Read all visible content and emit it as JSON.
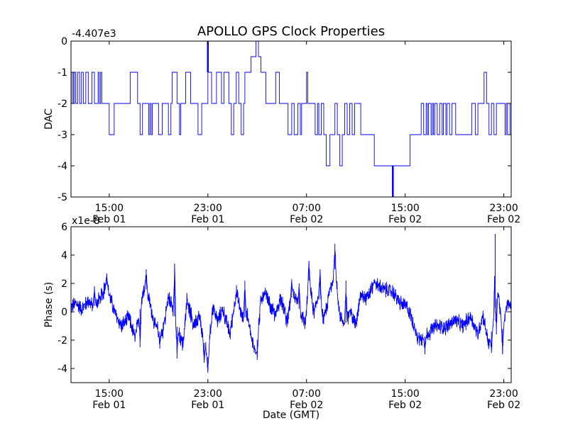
{
  "chart_data": {
    "title": "APOLLO GPS Clock Properties",
    "type": "line",
    "x_tick_labels": [
      {
        "time": "15:00",
        "date": "Feb 01",
        "hour": 15
      },
      {
        "time": "23:00",
        "date": "Feb 01",
        "hour": 23
      },
      {
        "time": "07:00",
        "date": "Feb 02",
        "hour": 31
      },
      {
        "time": "15:00",
        "date": "Feb 02",
        "hour": 39
      },
      {
        "time": "23:00",
        "date": "Feb 02",
        "hour": 47
      }
    ],
    "xlim_hours_from_feb01_00": [
      11.9,
      47.6
    ],
    "xlabel": "Date (GMT)",
    "colors": {
      "series": "#0000ff",
      "axes": "#000000",
      "background": "#ffffff"
    },
    "panels": [
      {
        "id": "dac",
        "ylabel": "DAC",
        "offset_text": "-4.407e3",
        "ylim": [
          -5,
          0
        ],
        "yticks": [
          -5,
          -4,
          -3,
          -2,
          -1,
          0
        ],
        "ytick_labels": [
          "-5",
          "-4",
          "-3",
          "-2",
          "-1",
          "0"
        ],
        "series_name": "DAC",
        "step_points": [
          [
            11.9,
            -2
          ],
          [
            12.0,
            -1
          ],
          [
            12.1,
            -2
          ],
          [
            12.2,
            -1
          ],
          [
            12.3,
            -2
          ],
          [
            12.45,
            -1
          ],
          [
            12.6,
            -2
          ],
          [
            12.75,
            -1
          ],
          [
            12.9,
            -2
          ],
          [
            13.1,
            -1
          ],
          [
            13.3,
            -2
          ],
          [
            13.6,
            -1
          ],
          [
            13.8,
            -2
          ],
          [
            14.1,
            -1
          ],
          [
            14.2,
            -2
          ],
          [
            14.3,
            -1
          ],
          [
            14.4,
            -2
          ],
          [
            14.5,
            -2
          ],
          [
            14.8,
            -2
          ],
          [
            15.0,
            -3
          ],
          [
            15.4,
            -2
          ],
          [
            16.0,
            -2
          ],
          [
            16.5,
            -2
          ],
          [
            16.7,
            -1
          ],
          [
            17.3,
            -2
          ],
          [
            17.5,
            -3
          ],
          [
            17.7,
            -2
          ],
          [
            18.0,
            -2
          ],
          [
            18.2,
            -3
          ],
          [
            18.3,
            -2
          ],
          [
            18.4,
            -3
          ],
          [
            18.5,
            -2
          ],
          [
            18.8,
            -2
          ],
          [
            19.0,
            -3
          ],
          [
            19.3,
            -2
          ],
          [
            19.6,
            -2
          ],
          [
            19.8,
            -3
          ],
          [
            20.0,
            -2
          ],
          [
            20.1,
            -1
          ],
          [
            20.5,
            -2
          ],
          [
            20.7,
            -3
          ],
          [
            20.8,
            -2
          ],
          [
            21.0,
            -2
          ],
          [
            21.2,
            -1
          ],
          [
            21.6,
            -2
          ],
          [
            22.0,
            -2
          ],
          [
            22.2,
            -3
          ],
          [
            22.5,
            -2
          ],
          [
            23.0,
            -1
          ],
          [
            23.3,
            -2
          ],
          [
            23.5,
            -2
          ],
          [
            23.7,
            -1
          ],
          [
            24.1,
            -2
          ],
          [
            24.3,
            -1
          ],
          [
            24.7,
            -2
          ],
          [
            24.9,
            -3
          ],
          [
            25.1,
            -2
          ],
          [
            25.3,
            -1
          ],
          [
            25.5,
            -2
          ],
          [
            25.7,
            -3
          ],
          [
            25.9,
            -2
          ],
          [
            26.0,
            -1
          ],
          [
            26.5,
            -0.5
          ],
          [
            26.9,
            0
          ],
          [
            27.1,
            -0.5
          ],
          [
            27.3,
            -1
          ],
          [
            27.7,
            -2
          ],
          [
            28.2,
            -2
          ],
          [
            28.5,
            -1
          ],
          [
            28.8,
            -2
          ],
          [
            29.3,
            -2
          ],
          [
            29.5,
            -3
          ],
          [
            29.8,
            -2
          ],
          [
            30.0,
            -3
          ],
          [
            30.3,
            -2
          ],
          [
            30.5,
            -3
          ],
          [
            30.6,
            -2
          ],
          [
            30.8,
            -2
          ],
          [
            31.0,
            -1
          ],
          [
            31.1,
            -2
          ],
          [
            31.5,
            -2
          ],
          [
            31.7,
            -3
          ],
          [
            31.9,
            -2
          ],
          [
            32.0,
            -3
          ],
          [
            32.2,
            -2
          ],
          [
            32.4,
            -3
          ],
          [
            32.6,
            -4
          ],
          [
            32.9,
            -3
          ],
          [
            33.1,
            -3
          ],
          [
            33.3,
            -2
          ],
          [
            33.5,
            -3
          ],
          [
            33.7,
            -4
          ],
          [
            33.9,
            -3
          ],
          [
            34.1,
            -2
          ],
          [
            34.3,
            -3
          ],
          [
            34.5,
            -2
          ],
          [
            34.7,
            -3
          ],
          [
            34.9,
            -2
          ],
          [
            35.2,
            -2
          ],
          [
            35.4,
            -3
          ],
          [
            36.3,
            -3
          ],
          [
            36.5,
            -4
          ],
          [
            39.2,
            -4
          ],
          [
            39.4,
            -3
          ],
          [
            40.0,
            -3
          ],
          [
            40.3,
            -2
          ],
          [
            40.5,
            -3
          ],
          [
            40.7,
            -2
          ],
          [
            40.8,
            -3
          ],
          [
            40.9,
            -2
          ],
          [
            41.1,
            -3
          ],
          [
            41.2,
            -2
          ],
          [
            41.3,
            -3
          ],
          [
            41.4,
            -2
          ],
          [
            41.6,
            -3
          ],
          [
            41.8,
            -2
          ],
          [
            42.0,
            -3
          ],
          [
            42.1,
            -2
          ],
          [
            42.3,
            -3
          ],
          [
            42.4,
            -2
          ],
          [
            42.6,
            -3
          ],
          [
            42.8,
            -2
          ],
          [
            43.1,
            -3
          ],
          [
            44.2,
            -3
          ],
          [
            44.4,
            -2
          ],
          [
            44.6,
            -2
          ],
          [
            44.7,
            -3
          ],
          [
            44.9,
            -2
          ],
          [
            45.2,
            -2
          ],
          [
            45.4,
            -1
          ],
          [
            45.6,
            -2
          ],
          [
            45.8,
            -3
          ],
          [
            46.0,
            -2
          ],
          [
            46.2,
            -3
          ],
          [
            46.4,
            -2
          ],
          [
            47.0,
            -2
          ],
          [
            47.1,
            -3
          ],
          [
            47.2,
            -2
          ],
          [
            47.3,
            -3
          ],
          [
            47.5,
            -2
          ],
          [
            47.6,
            -3
          ]
        ],
        "spikes": [
          {
            "hour": 23.0,
            "from": -1,
            "to": 0
          },
          {
            "hour": 38.0,
            "from": -4,
            "to": -5
          }
        ]
      },
      {
        "id": "phase",
        "ylabel": "Phase (s)",
        "offset_text": "x1e-8",
        "ylim": [
          -5,
          6
        ],
        "yticks": [
          -4,
          -2,
          0,
          2,
          4,
          6
        ],
        "ytick_labels": [
          "-4",
          "-2",
          "0",
          "2",
          "4",
          "6"
        ],
        "series_name": "Phase",
        "envelope": [
          [
            11.9,
            0.3
          ],
          [
            12.3,
            0.6
          ],
          [
            12.8,
            0.2
          ],
          [
            13.3,
            0.8
          ],
          [
            13.7,
            0.3
          ],
          [
            14.3,
            1.0
          ],
          [
            14.8,
            1.9
          ],
          [
            15.0,
            1.2
          ],
          [
            15.5,
            -0.2
          ],
          [
            16.0,
            -1.0
          ],
          [
            16.6,
            -0.4
          ],
          [
            17.1,
            -1.9
          ],
          [
            17.5,
            0.2
          ],
          [
            17.9,
            1.9
          ],
          [
            18.3,
            0.6
          ],
          [
            18.7,
            -1.0
          ],
          [
            19.3,
            -1.6
          ],
          [
            19.8,
            1.0
          ],
          [
            20.1,
            0.4
          ],
          [
            20.6,
            -1.4
          ],
          [
            21.0,
            -2.3
          ],
          [
            21.3,
            1.0
          ],
          [
            21.8,
            -0.9
          ],
          [
            22.3,
            -0.3
          ],
          [
            22.7,
            -2.2
          ],
          [
            23.0,
            -3.2
          ],
          [
            23.4,
            0.4
          ],
          [
            23.8,
            -0.7
          ],
          [
            24.2,
            0.2
          ],
          [
            24.8,
            -1.6
          ],
          [
            25.3,
            1.4
          ],
          [
            25.8,
            -0.5
          ],
          [
            26.2,
            -0.3
          ],
          [
            26.6,
            -2.2
          ],
          [
            26.9,
            -2.9
          ],
          [
            27.3,
            0.8
          ],
          [
            27.7,
            1.2
          ],
          [
            28.1,
            0.3
          ],
          [
            28.5,
            -0.3
          ],
          [
            28.9,
            1.1
          ],
          [
            29.4,
            -0.6
          ],
          [
            29.9,
            1.4
          ],
          [
            30.4,
            0.2
          ],
          [
            30.9,
            -0.8
          ],
          [
            31.2,
            2.2
          ],
          [
            31.6,
            -0.1
          ],
          [
            32.0,
            1.4
          ],
          [
            32.4,
            -0.7
          ],
          [
            32.9,
            1.5
          ],
          [
            33.3,
            3.0
          ],
          [
            33.7,
            -0.2
          ],
          [
            34.1,
            -1.0
          ],
          [
            34.6,
            0.1
          ],
          [
            35.0,
            -1.0
          ],
          [
            35.4,
            1.2
          ],
          [
            35.9,
            0.9
          ],
          [
            36.5,
            2.0
          ],
          [
            37.2,
            1.6
          ],
          [
            38.0,
            1.4
          ],
          [
            38.6,
            0.6
          ],
          [
            39.2,
            0.3
          ],
          [
            39.7,
            -0.9
          ],
          [
            40.3,
            -2.0
          ],
          [
            40.9,
            -1.5
          ],
          [
            41.5,
            -1.0
          ],
          [
            42.3,
            -1.1
          ],
          [
            43.0,
            -0.6
          ],
          [
            43.7,
            -1.0
          ],
          [
            44.3,
            -0.3
          ],
          [
            44.9,
            -1.6
          ],
          [
            45.3,
            -0.2
          ],
          [
            45.8,
            -2.4
          ],
          [
            46.2,
            -0.4
          ],
          [
            46.5,
            1.6
          ],
          [
            46.9,
            -1.2
          ],
          [
            47.3,
            0.6
          ],
          [
            47.6,
            0.3
          ]
        ],
        "peaks": [
          {
            "hour": 13.8,
            "value": 1.8
          },
          {
            "hour": 14.8,
            "value": 2.7
          },
          {
            "hour": 17.5,
            "value": -2.5
          },
          {
            "hour": 18.0,
            "value": 3.0
          },
          {
            "hour": 19.1,
            "value": -2.6
          },
          {
            "hour": 20.3,
            "value": 3.4
          },
          {
            "hour": 20.5,
            "value": -3.3
          },
          {
            "hour": 22.7,
            "value": -3.6
          },
          {
            "hour": 23.0,
            "value": -4.3
          },
          {
            "hour": 26.0,
            "value": 2.2
          },
          {
            "hour": 27.0,
            "value": -3.4
          },
          {
            "hour": 29.8,
            "value": 2.3
          },
          {
            "hour": 30.4,
            "value": 2.0
          },
          {
            "hour": 31.2,
            "value": 3.6
          },
          {
            "hour": 32.1,
            "value": 3.0
          },
          {
            "hour": 33.3,
            "value": 4.8
          },
          {
            "hour": 34.2,
            "value": 2.2
          },
          {
            "hour": 36.5,
            "value": 2.3
          },
          {
            "hour": 40.0,
            "value": -2.3
          },
          {
            "hour": 40.6,
            "value": -3.0
          },
          {
            "hour": 46.0,
            "value": -2.9
          },
          {
            "hour": 46.3,
            "value": 5.5
          },
          {
            "hour": 46.4,
            "value": -1.6
          },
          {
            "hour": 46.9,
            "value": -3.0
          }
        ],
        "noise_amplitude": 0.45
      }
    ]
  }
}
